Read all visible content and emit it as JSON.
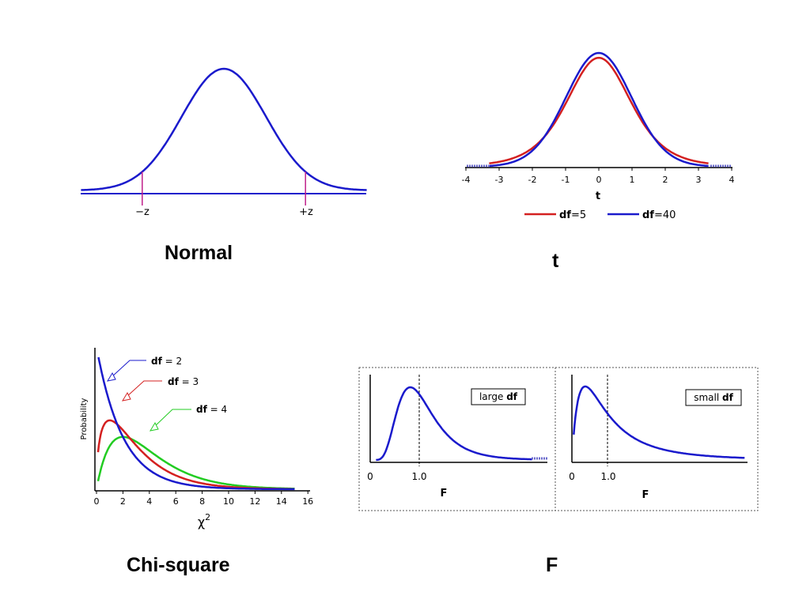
{
  "captions": {
    "normal": "Normal",
    "t": "t",
    "chi_square": "Chi-square",
    "f": "F"
  },
  "colors": {
    "blue": "#1a1acc",
    "red": "#d42020",
    "green": "#22cc22",
    "magenta": "#c0208a",
    "axis": "#000000"
  },
  "chart_data": [
    {
      "id": "normal",
      "type": "line",
      "title": "Normal",
      "x_ticks": [
        "−z",
        "+z"
      ],
      "critical_values": [
        -1.2,
        1.2
      ],
      "xlim": [
        -2.1,
        2.1
      ],
      "series": [
        {
          "distribution": "normal",
          "mean": 0,
          "sd": 0.62,
          "color": "#1a1acc"
        }
      ],
      "grid": false
    },
    {
      "id": "t",
      "type": "line",
      "title": "t",
      "xlabel": "t",
      "x_ticks": [
        "-4",
        "-3",
        "-2",
        "-1",
        "0",
        "1",
        "2",
        "3",
        "4"
      ],
      "xlim": [
        -4,
        4
      ],
      "legend_position": "bottom",
      "series": [
        {
          "name": "df=5",
          "name_bold": "df",
          "name_rest": "=5",
          "distribution": "t",
          "df": 5,
          "color": "#d42020"
        },
        {
          "name": "df=40",
          "name_bold": "df",
          "name_rest": "=40",
          "distribution": "t",
          "df": 40,
          "color": "#1a1acc"
        }
      ],
      "grid": false
    },
    {
      "id": "chi_square",
      "type": "line",
      "title": "Chi-square",
      "xlabel": "χ",
      "xlabel_superscript": "2",
      "ylabel": "Probability",
      "x_ticks": [
        "0",
        "2",
        "4",
        "6",
        "8",
        "10",
        "12",
        "14",
        "16"
      ],
      "xlim": [
        0,
        16
      ],
      "series": [
        {
          "name": "df = 2",
          "name_bold": "df",
          "name_rest": " = 2",
          "distribution": "chi2",
          "df": 2,
          "color": "#1a1acc"
        },
        {
          "name": "df = 3",
          "name_bold": "df",
          "name_rest": " = 3",
          "distribution": "chi2",
          "df": 3,
          "color": "#d42020"
        },
        {
          "name": "df = 4",
          "name_bold": "df",
          "name_rest": " = 4",
          "distribution": "chi2",
          "df": 4,
          "color": "#22cc22"
        }
      ],
      "grid": false
    },
    {
      "id": "f_large",
      "type": "line",
      "title": "F",
      "xlabel": "F",
      "x_ticks": [
        "0",
        "1.0"
      ],
      "reference_line_x": 1.0,
      "box_label": {
        "prefix": "large ",
        "bold": "df"
      },
      "series": [
        {
          "distribution": "F",
          "df1": "large",
          "df2": "large",
          "color": "#1a1acc"
        }
      ],
      "grid": false
    },
    {
      "id": "f_small",
      "type": "line",
      "title": "F",
      "xlabel": "F",
      "x_ticks": [
        "0",
        "1.0"
      ],
      "reference_line_x": 1.0,
      "box_label": {
        "prefix": "small ",
        "bold": "df"
      },
      "series": [
        {
          "distribution": "F",
          "df1": "small",
          "df2": "small",
          "color": "#1a1acc"
        }
      ],
      "grid": false
    }
  ]
}
